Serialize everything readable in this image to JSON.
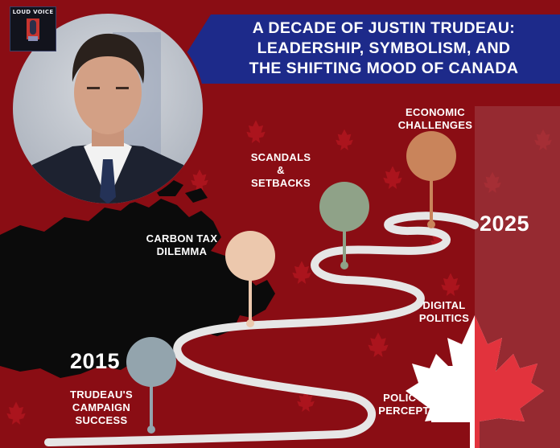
{
  "logo": {
    "name": "LOUD VOICE"
  },
  "title": {
    "line1": "A DECADE OF JUSTIN TRUDEAU:",
    "line2": "LEADERSHIP, SYMBOLISM, AND",
    "line3": "THE SHIFTING MOOD OF CANADA"
  },
  "years": {
    "start": "2015",
    "end": "2025"
  },
  "milestones": [
    {
      "lines": [
        "TRUDEAU'S",
        "CAMPAIGN",
        "SUCCESS"
      ],
      "color": "#93a4ad"
    },
    {
      "lines": [
        "CARBON TAX",
        "DILEMMA"
      ],
      "color": "#ecc8ad"
    },
    {
      "lines": [
        "SCANDALS",
        "&",
        "SETBACKS"
      ],
      "color": "#8fa288"
    },
    {
      "lines": [
        "ECONOMIC",
        "CHALLENGES"
      ],
      "color": "#c9845b"
    }
  ],
  "road_labels": [
    {
      "lines": [
        "DIGITAL",
        "POLITICS"
      ]
    },
    {
      "lines": [
        "POLICY VS.",
        "PERCEPTION"
      ]
    }
  ],
  "colors": {
    "background": "#8a0d14",
    "banner": "#1d2a8a",
    "road": "#e6e6e6",
    "flag_red": "#e0222d"
  }
}
